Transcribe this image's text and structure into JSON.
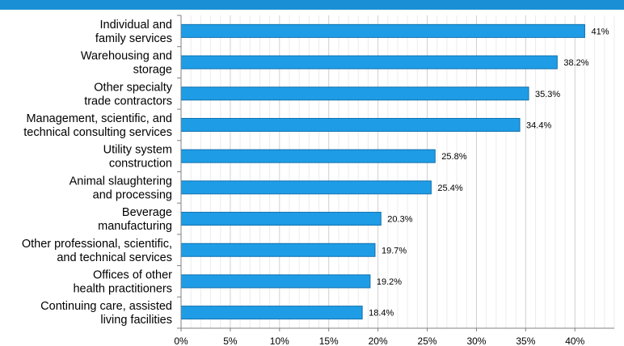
{
  "chart_data": {
    "type": "bar",
    "orientation": "horizontal",
    "categories": [
      "Individual and family services",
      "Warehousing and storage",
      "Other specialty trade contractors",
      "Management, scientific, and technical consulting services",
      "Utility system construction",
      "Animal slaughtering and processing",
      "Beverage manufacturing",
      "Other professional, scientific, and technical services",
      "Offices of other health practitioners",
      "Continuing care, assisted living facilities"
    ],
    "category_label_lines": [
      [
        "Individual and",
        "family services"
      ],
      [
        "Warehousing and",
        "storage"
      ],
      [
        "Other specialty",
        "trade contractors"
      ],
      [
        "Management, scientific, and",
        "technical consulting services"
      ],
      [
        "Utility system",
        "construction"
      ],
      [
        "Animal slaughtering",
        "and processing"
      ],
      [
        "Beverage",
        "manufacturing"
      ],
      [
        "Other professional, scientific,",
        "and technical services"
      ],
      [
        "Offices of other",
        "health practitioners"
      ],
      [
        "Continuing care, assisted",
        "living facilities"
      ]
    ],
    "values": [
      41,
      38.2,
      35.3,
      34.4,
      25.8,
      25.4,
      20.3,
      19.7,
      19.2,
      18.4
    ],
    "value_labels": [
      "41%",
      "38.2%",
      "35.3%",
      "34.4%",
      "25.8%",
      "25.4%",
      "20.3%",
      "19.7%",
      "19.2%",
      "18.4%"
    ],
    "xlim": [
      0,
      44
    ],
    "x_ticks": [
      0,
      5,
      10,
      15,
      20,
      25,
      30,
      35,
      40
    ],
    "x_tick_labels": [
      "0%",
      "5%",
      "10%",
      "15%",
      "20%",
      "25%",
      "30%",
      "35%",
      "40%"
    ],
    "grid": "vertical",
    "bar_color": "#1e9de6",
    "bar_edge_color": "#0f6fae",
    "banner_color": "#1a8fd6",
    "title": "",
    "xlabel": "",
    "ylabel": ""
  }
}
